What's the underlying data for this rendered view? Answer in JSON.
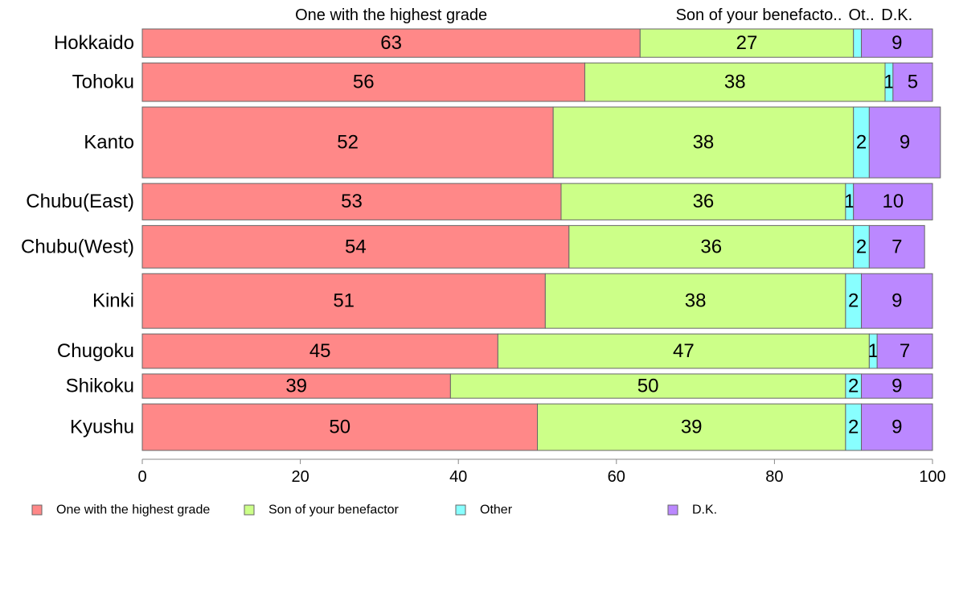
{
  "chart_data": {
    "type": "bar",
    "orientation": "horizontal",
    "stacked": true,
    "categories": [
      "Hokkaido",
      "Tohoku",
      "Kanto",
      "Chubu(East)",
      "Chubu(West)",
      "Kinki",
      "Chugoku",
      "Shikoku",
      "Kyushu"
    ],
    "bar_weights": [
      0.7,
      0.95,
      1.75,
      0.9,
      1.05,
      1.35,
      0.85,
      0.6,
      1.15
    ],
    "series": [
      {
        "name": "One with the highest grade",
        "color": "#FF8888",
        "values": [
          63,
          56,
          52,
          53,
          54,
          51,
          45,
          39,
          50
        ]
      },
      {
        "name": "Son of your benefactor",
        "color": "#CCFF88",
        "values": [
          27,
          38,
          38,
          36,
          36,
          38,
          47,
          50,
          39
        ]
      },
      {
        "name": "Other",
        "color": "#88FFFF",
        "values": [
          1,
          1,
          2,
          1,
          2,
          2,
          1,
          2,
          2
        ]
      },
      {
        "name": "D.K.",
        "color": "#BB88FF",
        "values": [
          9,
          5,
          9,
          10,
          7,
          9,
          7,
          9,
          9
        ]
      }
    ],
    "hidden_labels": [
      [
        2,
        0
      ]
    ],
    "top_labels": [
      "One with the highest grade",
      "Son of your benefacto..",
      "Ot..",
      "D.K."
    ],
    "xlim": [
      0,
      100
    ],
    "xticks": [
      0,
      20,
      40,
      60,
      80,
      100
    ],
    "grid": false,
    "legend": "bottom"
  }
}
